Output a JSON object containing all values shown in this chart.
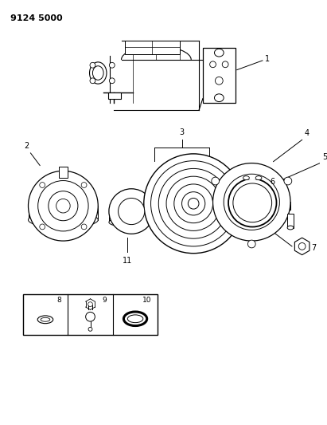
{
  "title": "9124 5000",
  "bg_color": "#ffffff",
  "line_color": "#000000",
  "fig_width": 4.11,
  "fig_height": 5.33,
  "dpi": 100
}
